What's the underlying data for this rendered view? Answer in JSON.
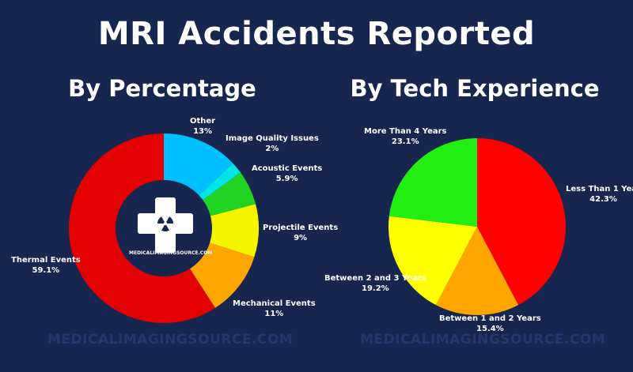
{
  "title": "MRI Accidents Reported",
  "watermark": "MEDICALIMAGINGSOURCE.COM",
  "logo": {
    "text": "MEDICALIMAGINGSOURCE.COM"
  },
  "chart_data": [
    {
      "type": "pie",
      "title": "By Percentage",
      "donut": true,
      "categories": [
        "Other",
        "Image Quality Issues",
        "Acoustic Events",
        "Projectile Events",
        "Mechanical Events",
        "Thermal Events"
      ],
      "values": [
        13,
        2,
        5.9,
        9,
        11,
        59.1
      ],
      "value_labels": [
        "13%",
        "2%",
        "5.9%",
        "9%",
        "11%",
        "59.1%"
      ],
      "colors": [
        "#00bfff",
        "#00e5e5",
        "#22d422",
        "#f5f500",
        "#ffa500",
        "#e30000"
      ]
    },
    {
      "type": "pie",
      "title": "By Tech Experience",
      "categories": [
        "Less Than 1 Year",
        "Between 1 and 2 Years",
        "Between 2 and 3 Years",
        "More Than 4 Years"
      ],
      "values": [
        42.3,
        15.4,
        19.2,
        23.1
      ],
      "value_labels": [
        "42.3%",
        "15.4%",
        "19.2%",
        "23.1%"
      ],
      "colors": [
        "#ff0000",
        "#ffa500",
        "#ffff00",
        "#22ee11"
      ]
    }
  ]
}
